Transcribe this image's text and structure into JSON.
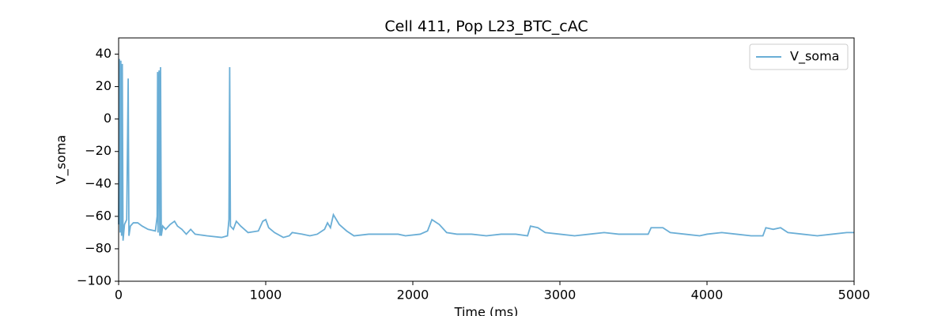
{
  "chart_data": {
    "type": "line",
    "title": "Cell 411, Pop L23_BTC_cAC",
    "xlabel": "Time (ms)",
    "ylabel": "V_soma",
    "x": [
      0,
      5,
      10,
      15,
      20,
      25,
      30,
      40,
      55,
      65,
      70,
      80,
      100,
      130,
      160,
      200,
      250,
      262,
      265,
      268,
      275,
      280,
      285,
      290,
      300,
      320,
      350,
      380,
      400,
      430,
      460,
      490,
      520,
      600,
      700,
      740,
      750,
      755,
      760,
      780,
      800,
      830,
      880,
      950,
      980,
      1000,
      1020,
      1060,
      1120,
      1160,
      1180,
      1250,
      1300,
      1350,
      1400,
      1420,
      1440,
      1460,
      1500,
      1550,
      1600,
      1700,
      1800,
      1900,
      1950,
      2050,
      2100,
      2130,
      2180,
      2230,
      2300,
      2400,
      2500,
      2600,
      2700,
      2780,
      2800,
      2850,
      2900,
      3000,
      3100,
      3200,
      3300,
      3400,
      3500,
      3600,
      3620,
      3700,
      3750,
      3850,
      3950,
      4000,
      4100,
      4200,
      4300,
      4380,
      4400,
      4450,
      4500,
      4550,
      4650,
      4750,
      4850,
      4950,
      5000
    ],
    "series": [
      {
        "name": "V_soma",
        "color": "#6aaed6",
        "values": [
          -65,
          37,
          -70,
          36,
          -72,
          34,
          -75,
          -65,
          -62,
          25,
          -72,
          -66,
          -64,
          -64,
          -66,
          -68,
          -69,
          -60,
          29,
          -70,
          30,
          -72,
          32,
          -72,
          -66,
          -68,
          -65,
          -63,
          -66,
          -68,
          -71,
          -68,
          -71,
          -72,
          -73,
          -72,
          -62,
          32,
          -66,
          -68,
          -63,
          -66,
          -70,
          -69,
          -63,
          -62,
          -67,
          -70,
          -73,
          -72,
          -70,
          -71,
          -72,
          -71,
          -68,
          -64,
          -67,
          -59,
          -65,
          -69,
          -72,
          -71,
          -71,
          -71,
          -72,
          -71,
          -69,
          -62,
          -65,
          -70,
          -71,
          -71,
          -72,
          -71,
          -71,
          -72,
          -66,
          -67,
          -70,
          -71,
          -72,
          -71,
          -70,
          -71,
          -71,
          -71,
          -67,
          -67,
          -70,
          -71,
          -72,
          -71,
          -70,
          -71,
          -72,
          -72,
          -67,
          -68,
          -67,
          -70,
          -71,
          -72,
          -71,
          -70,
          -70
        ]
      }
    ],
    "xlim": [
      0,
      5000
    ],
    "xticks": [
      0,
      1000,
      2000,
      3000,
      4000,
      5000
    ],
    "ylim": [
      -100,
      50
    ],
    "yticks": [
      {
        "value": -100,
        "label": "−100"
      },
      {
        "value": -80,
        "label": "−80"
      },
      {
        "value": -60,
        "label": "−60"
      },
      {
        "value": -40,
        "label": "−40"
      },
      {
        "value": -20,
        "label": "−20"
      },
      0,
      20,
      40
    ],
    "legend": "upper right"
  }
}
